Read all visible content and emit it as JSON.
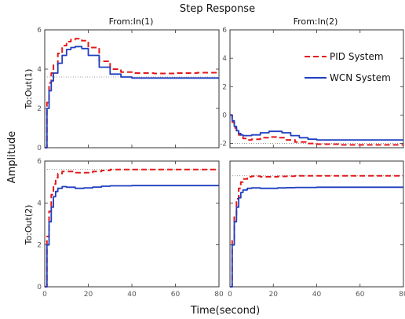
{
  "chart_data": {
    "type": "line",
    "title": "Step Response",
    "xlabel": "Time(second)",
    "ylabel": "Amplitude",
    "column_titles": [
      "From:In(1)",
      "From:In(2)"
    ],
    "row_titles": [
      "To:Out(1)",
      "To:Out(2)"
    ],
    "legend": {
      "position": "right of top-right panel",
      "entries": [
        {
          "label": "PID System",
          "color": "#e31a1c",
          "style": "dashed"
        },
        {
          "label": "WCN System",
          "color": "#1f3fbf",
          "style": "solid"
        }
      ]
    },
    "xlim": [
      0,
      80
    ],
    "xticks": [
      "0",
      "20",
      "40",
      "60",
      "80"
    ],
    "grid": false,
    "panels": [
      {
        "row": 0,
        "col": 0,
        "ylim": [
          0,
          6
        ],
        "yticks": [
          "0",
          "2",
          "4",
          "6"
        ],
        "reference_line": 3.6,
        "series": [
          {
            "name": "PID System",
            "x": [
              0,
              0.5,
              1,
              2,
              3,
              4,
              6,
              8,
              10,
              12,
              14,
              17,
              20,
              25,
              30,
              35,
              40,
              50,
              60,
              70,
              80
            ],
            "y": [
              0,
              0,
              2.3,
              3.3,
              3.8,
              4.2,
              4.8,
              5.2,
              5.4,
              5.5,
              5.55,
              5.45,
              5.1,
              4.4,
              4.0,
              3.85,
              3.8,
              3.78,
              3.8,
              3.82,
              3.85
            ]
          },
          {
            "name": "WCN System",
            "x": [
              0,
              0.5,
              1,
              2,
              3,
              4,
              6,
              8,
              10,
              12,
              14,
              17,
              20,
              25,
              30,
              35,
              40,
              50,
              60,
              70,
              80
            ],
            "y": [
              0,
              0,
              2.0,
              2.9,
              3.4,
              3.8,
              4.3,
              4.7,
              5.0,
              5.1,
              5.15,
              5.05,
              4.7,
              4.1,
              3.75,
              3.6,
              3.55,
              3.55,
              3.55,
              3.55,
              3.55
            ]
          }
        ]
      },
      {
        "row": 0,
        "col": 1,
        "ylim": [
          -2.3,
          6
        ],
        "yticks": [
          "-2",
          "0",
          "2",
          "4",
          "6"
        ],
        "reference_line": -2.0,
        "series": [
          {
            "name": "PID System",
            "x": [
              0,
              1,
              2,
              3,
              4,
              5,
              6,
              8,
              10,
              14,
              18,
              22,
              26,
              30,
              35,
              40,
              50,
              60,
              70,
              80
            ],
            "y": [
              0,
              -0.5,
              -0.9,
              -1.2,
              -1.4,
              -1.55,
              -1.65,
              -1.75,
              -1.7,
              -1.6,
              -1.55,
              -1.6,
              -1.75,
              -1.9,
              -2.0,
              -2.05,
              -2.1,
              -2.1,
              -2.1,
              -2.1
            ]
          },
          {
            "name": "WCN System",
            "x": [
              0,
              1,
              2,
              3,
              4,
              5,
              6,
              8,
              10,
              14,
              18,
              20,
              24,
              28,
              32,
              36,
              40,
              50,
              60,
              70,
              80
            ],
            "y": [
              0,
              -0.4,
              -0.8,
              -1.1,
              -1.3,
              -1.4,
              -1.45,
              -1.45,
              -1.4,
              -1.25,
              -1.15,
              -1.15,
              -1.25,
              -1.45,
              -1.6,
              -1.7,
              -1.75,
              -1.75,
              -1.75,
              -1.75,
              -1.75
            ]
          }
        ]
      },
      {
        "row": 1,
        "col": 0,
        "ylim": [
          0,
          6
        ],
        "yticks": [
          "0",
          "2",
          "4",
          "6"
        ],
        "reference_line": 5.6,
        "series": [
          {
            "name": "PID System",
            "x": [
              0,
              0.5,
              1,
              2,
              3,
              4,
              5,
              6,
              8,
              10,
              14,
              18,
              22,
              26,
              30,
              40,
              50,
              60,
              70,
              80
            ],
            "y": [
              0,
              0,
              2.4,
              3.6,
              4.4,
              4.9,
              5.2,
              5.4,
              5.5,
              5.5,
              5.45,
              5.45,
              5.5,
              5.55,
              5.6,
              5.6,
              5.6,
              5.6,
              5.6,
              5.6
            ]
          },
          {
            "name": "WCN System",
            "x": [
              0,
              0.5,
              1,
              2,
              3,
              4,
              5,
              6,
              8,
              10,
              14,
              18,
              22,
              26,
              30,
              40,
              50,
              60,
              70,
              80
            ],
            "y": [
              0,
              0,
              2.0,
              3.1,
              3.8,
              4.3,
              4.55,
              4.7,
              4.78,
              4.75,
              4.7,
              4.72,
              4.76,
              4.8,
              4.82,
              4.83,
              4.83,
              4.83,
              4.83,
              4.83
            ]
          }
        ]
      },
      {
        "row": 1,
        "col": 1,
        "ylim": [
          0,
          6
        ],
        "yticks": [
          "0",
          "2",
          "4",
          "6"
        ],
        "reference_line": 5.3,
        "series": [
          {
            "name": "PID System",
            "x": [
              0,
              0.5,
              1,
              2,
              3,
              4,
              5,
              6,
              8,
              10,
              14,
              18,
              22,
              26,
              30,
              40,
              50,
              60,
              70,
              80
            ],
            "y": [
              0,
              0,
              2.2,
              3.4,
              4.2,
              4.7,
              5.0,
              5.15,
              5.25,
              5.28,
              5.25,
              5.25,
              5.27,
              5.28,
              5.3,
              5.3,
              5.3,
              5.3,
              5.3,
              5.3
            ]
          },
          {
            "name": "WCN System",
            "x": [
              0,
              0.5,
              1,
              2,
              3,
              4,
              5,
              6,
              8,
              10,
              14,
              18,
              22,
              26,
              30,
              40,
              50,
              60,
              70,
              80
            ],
            "y": [
              0,
              0,
              2.0,
              3.1,
              3.8,
              4.25,
              4.5,
              4.62,
              4.7,
              4.72,
              4.7,
              4.7,
              4.72,
              4.73,
              4.74,
              4.75,
              4.75,
              4.75,
              4.75,
              4.75
            ]
          }
        ]
      }
    ]
  }
}
